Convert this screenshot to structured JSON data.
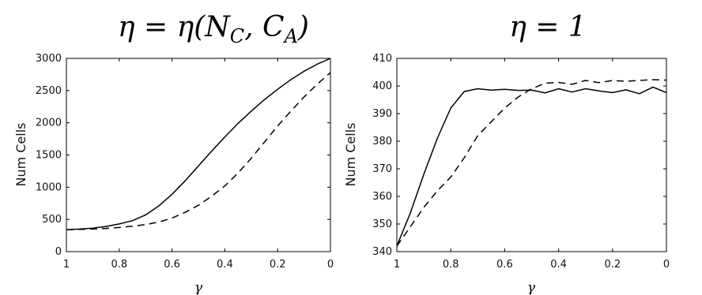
{
  "chart_data": [
    {
      "type": "line",
      "title": "η = η(N_C, C_A)",
      "xlabel": "γ",
      "ylabel": "Num Cells",
      "xlim": [
        1,
        0
      ],
      "ylim": [
        0,
        3000
      ],
      "x_reversed": true,
      "xticks": [
        "1",
        "0.8",
        "0.6",
        "0.4",
        "0.2",
        "0"
      ],
      "yticks": [
        "0",
        "500",
        "1000",
        "1500",
        "2000",
        "2500",
        "3000"
      ],
      "grid": false,
      "series": [
        {
          "style": "solid",
          "x": [
            1,
            0.95,
            0.9,
            0.85,
            0.8,
            0.75,
            0.7,
            0.65,
            0.6,
            0.55,
            0.5,
            0.45,
            0.4,
            0.35,
            0.3,
            0.25,
            0.2,
            0.15,
            0.1,
            0.05,
            0
          ],
          "y": [
            340,
            350,
            365,
            390,
            430,
            480,
            570,
            710,
            890,
            1100,
            1330,
            1560,
            1780,
            1990,
            2180,
            2360,
            2520,
            2670,
            2800,
            2910,
            3000
          ]
        },
        {
          "style": "dashed",
          "x": [
            1,
            0.95,
            0.9,
            0.85,
            0.8,
            0.75,
            0.7,
            0.65,
            0.6,
            0.55,
            0.5,
            0.45,
            0.4,
            0.35,
            0.3,
            0.25,
            0.2,
            0.15,
            0.1,
            0.05,
            0
          ],
          "y": [
            340,
            345,
            350,
            360,
            375,
            395,
            420,
            460,
            520,
            610,
            720,
            860,
            1020,
            1220,
            1450,
            1700,
            1950,
            2180,
            2400,
            2600,
            2780
          ]
        }
      ]
    },
    {
      "type": "line",
      "title": "η = 1",
      "xlabel": "γ",
      "ylabel": "Num Cells",
      "xlim": [
        1,
        0
      ],
      "ylim": [
        340,
        410
      ],
      "x_reversed": true,
      "xticks": [
        "1",
        "0.8",
        "0.6",
        "0.4",
        "0.2",
        "0"
      ],
      "yticks": [
        "340",
        "350",
        "360",
        "370",
        "380",
        "390",
        "400",
        "410"
      ],
      "grid": false,
      "series": [
        {
          "style": "solid",
          "x": [
            1,
            0.95,
            0.9,
            0.85,
            0.8,
            0.75,
            0.7,
            0.65,
            0.6,
            0.55,
            0.5,
            0.45,
            0.4,
            0.35,
            0.3,
            0.25,
            0.2,
            0.15,
            0.1,
            0.05,
            0
          ],
          "y": [
            342,
            354,
            368,
            381,
            392,
            398,
            399,
            398.5,
            398.8,
            398.4,
            398.5,
            397.5,
            399,
            397.8,
            399,
            398.2,
            397.6,
            398.6,
            397.2,
            399.6,
            397.6
          ]
        },
        {
          "style": "dashed",
          "x": [
            1,
            0.95,
            0.9,
            0.85,
            0.8,
            0.75,
            0.7,
            0.65,
            0.6,
            0.55,
            0.5,
            0.45,
            0.4,
            0.35,
            0.3,
            0.25,
            0.2,
            0.15,
            0.1,
            0.05,
            0
          ],
          "y": [
            342,
            349,
            356,
            362,
            367,
            374,
            382,
            387,
            392,
            396,
            399,
            401,
            401.3,
            400.6,
            402,
            401.2,
            402,
            401.7,
            402,
            402.3,
            402.1
          ]
        }
      ]
    }
  ]
}
